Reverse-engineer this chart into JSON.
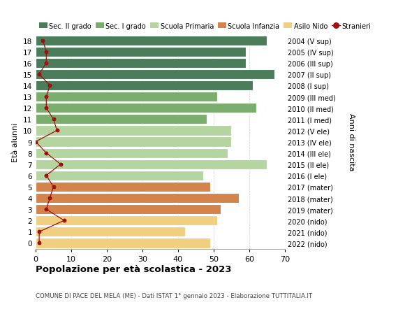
{
  "ages": [
    18,
    17,
    16,
    15,
    14,
    13,
    12,
    11,
    10,
    9,
    8,
    7,
    6,
    5,
    4,
    3,
    2,
    1,
    0
  ],
  "bar_values": [
    65,
    59,
    59,
    67,
    61,
    51,
    62,
    48,
    55,
    55,
    54,
    65,
    47,
    49,
    57,
    52,
    51,
    42,
    49
  ],
  "right_labels": [
    "2004 (V sup)",
    "2005 (IV sup)",
    "2006 (III sup)",
    "2007 (II sup)",
    "2008 (I sup)",
    "2009 (III med)",
    "2010 (II med)",
    "2011 (I med)",
    "2012 (V ele)",
    "2013 (IV ele)",
    "2014 (III ele)",
    "2015 (II ele)",
    "2016 (I ele)",
    "2017 (mater)",
    "2018 (mater)",
    "2019 (mater)",
    "2020 (nido)",
    "2021 (nido)",
    "2022 (nido)"
  ],
  "bar_colors": [
    "#4a7c59",
    "#4a7c59",
    "#4a7c59",
    "#4a7c59",
    "#4a7c59",
    "#7aad6e",
    "#7aad6e",
    "#7aad6e",
    "#b5d5a0",
    "#b5d5a0",
    "#b5d5a0",
    "#b5d5a0",
    "#b5d5a0",
    "#d4844a",
    "#d4844a",
    "#d4844a",
    "#f0d080",
    "#f0d080",
    "#f0d080"
  ],
  "stranieri_values": [
    2,
    3,
    3,
    1,
    4,
    3,
    3,
    5,
    6,
    0,
    3,
    7,
    3,
    5,
    4,
    3,
    8,
    1,
    1
  ],
  "stranieri_color": "#a01010",
  "legend_items": [
    {
      "label": "Sec. II grado",
      "color": "#4a7c59"
    },
    {
      "label": "Sec. I grado",
      "color": "#7aad6e"
    },
    {
      "label": "Scuola Primaria",
      "color": "#b5d5a0"
    },
    {
      "label": "Scuola Infanzia",
      "color": "#d4844a"
    },
    {
      "label": "Asilo Nido",
      "color": "#f0d080"
    },
    {
      "label": "Stranieri",
      "color": "#a01010"
    }
  ],
  "ylabel_left": "Età alunni",
  "ylabel_right": "Anni di nascita",
  "title": "Popolazione per età scolastica - 2023",
  "subtitle": "COMUNE DI PACE DEL MELA (ME) - Dati ISTAT 1° gennaio 2023 - Elaborazione TUTTITALIA.IT",
  "xlim": [
    0,
    70
  ],
  "background_color": "#ffffff",
  "grid_color": "#d0d0d0"
}
